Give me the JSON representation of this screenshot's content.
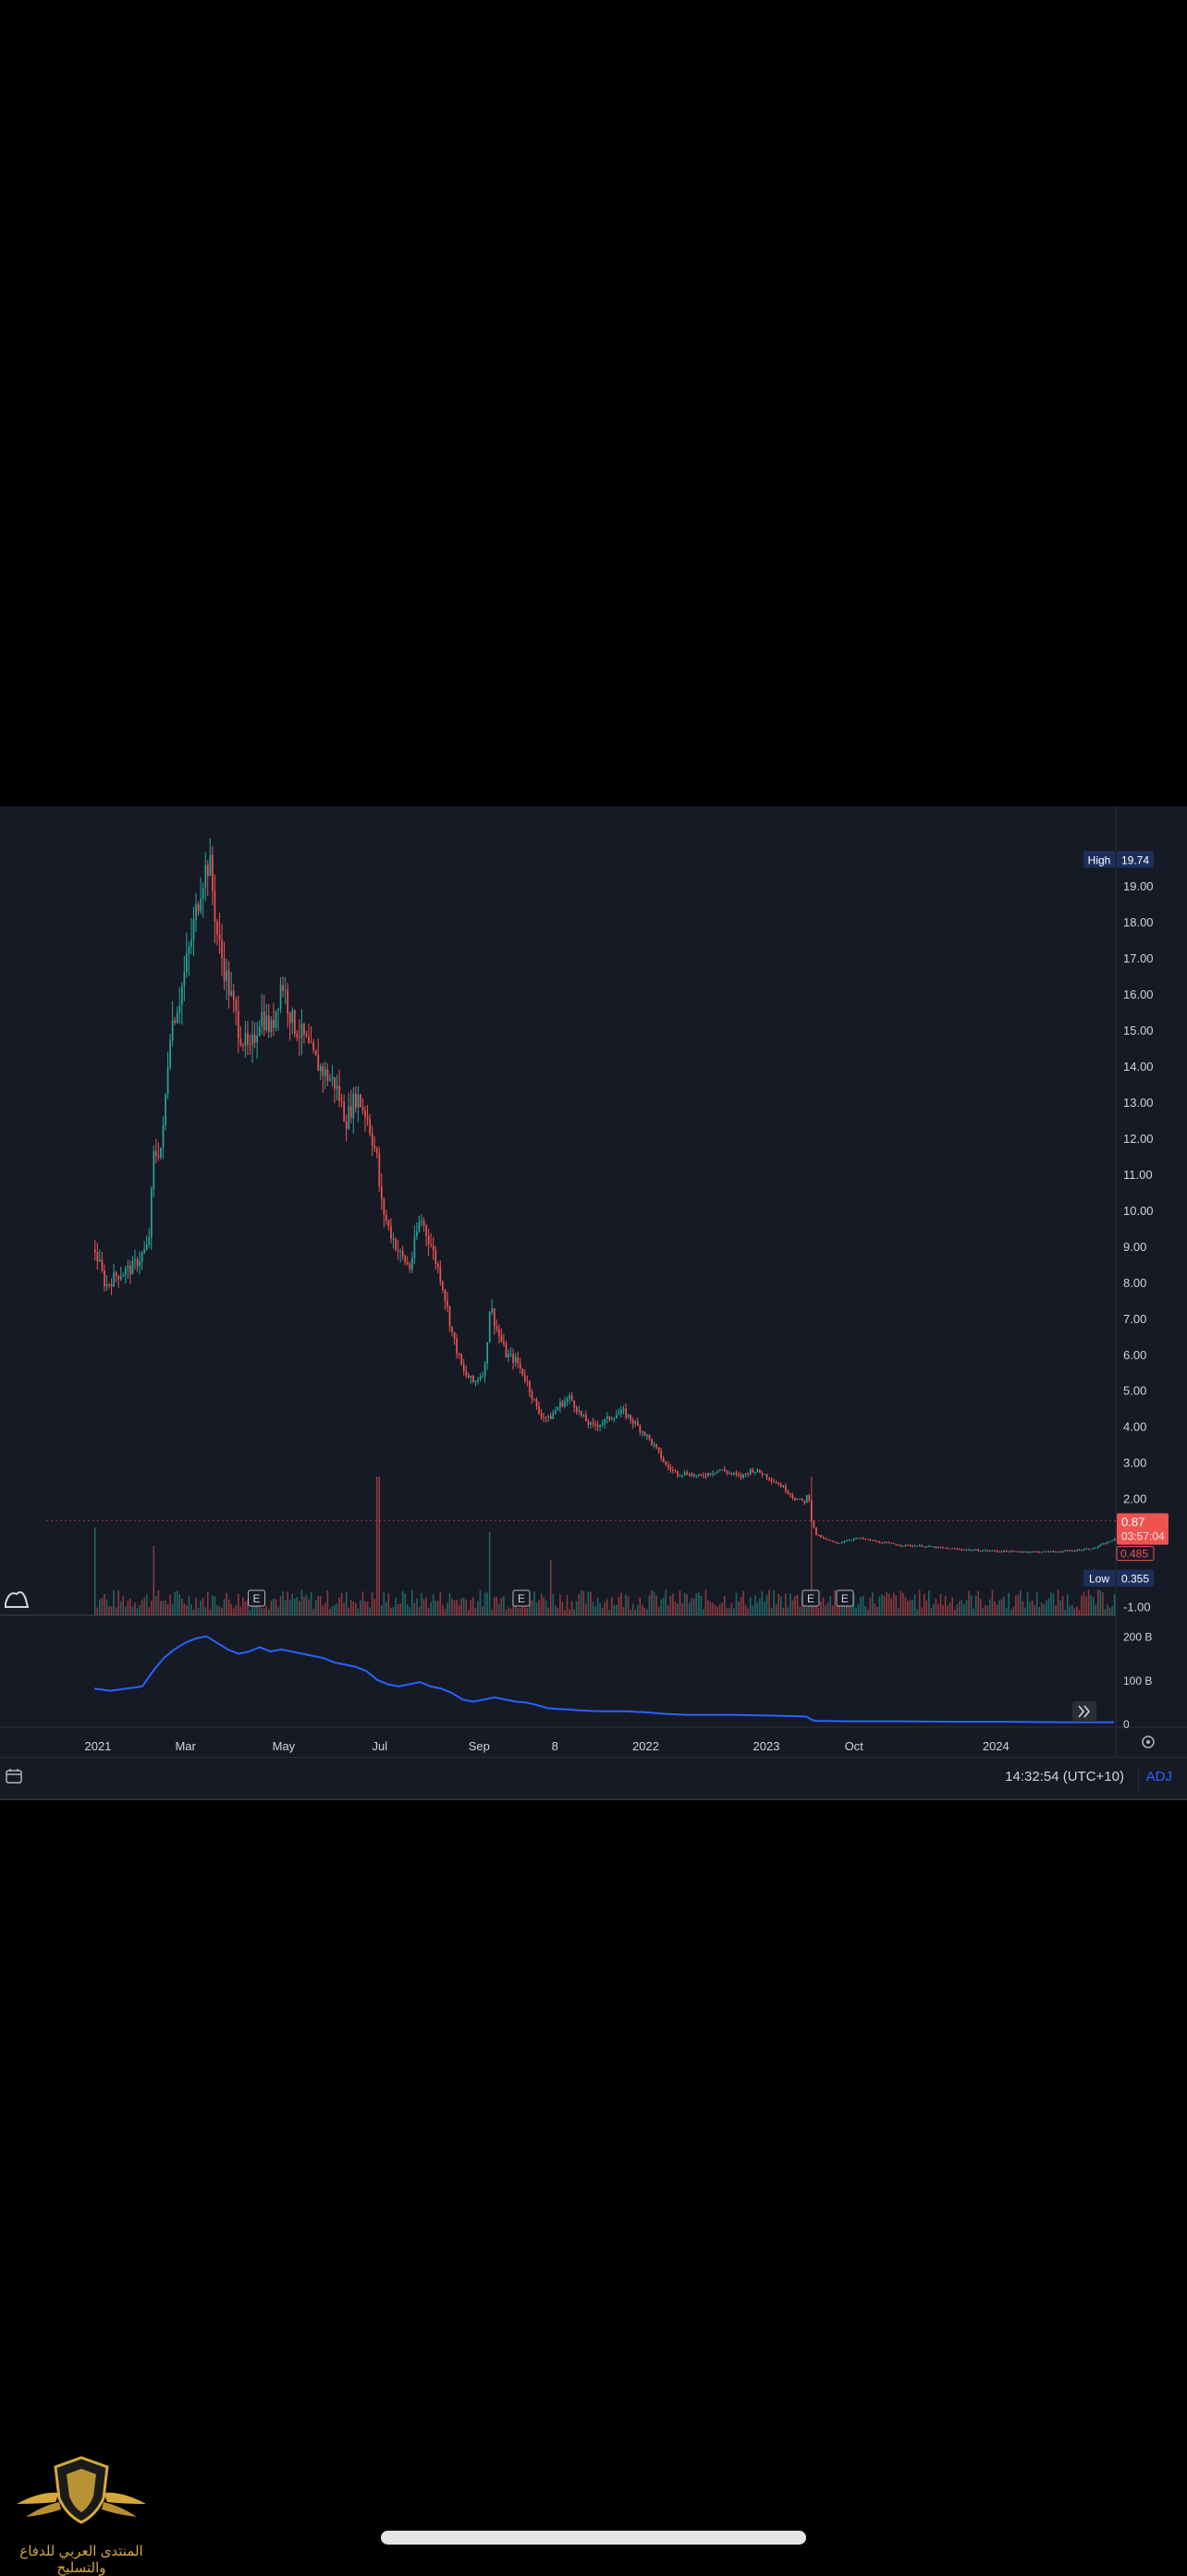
{
  "chart_data": {
    "type": "candlestick",
    "price_axis": {
      "ticks": [
        "19.00",
        "18.00",
        "17.00",
        "16.00",
        "15.00",
        "14.00",
        "13.00",
        "12.00",
        "11.00",
        "10.00",
        "9.00",
        "8.00",
        "7.00",
        "6.00",
        "5.00",
        "4.00",
        "3.00",
        "2.00",
        "-1.00"
      ],
      "tick_values": [
        19,
        18,
        17,
        16,
        15,
        14,
        13,
        12,
        11,
        10,
        9,
        8,
        7,
        6,
        5,
        4,
        3,
        2,
        -1
      ],
      "range": [
        -1.5,
        20.7
      ],
      "high_label": "High",
      "high_value": "19.74",
      "low_label": "Low",
      "low_value": "0.355",
      "last_price": "0.87",
      "countdown": "03:57:04",
      "secondary_price": "0.485"
    },
    "time_axis": {
      "labels": [
        "2021",
        "Mar",
        "May",
        "Jul",
        "Sep",
        "8",
        "2022",
        "2023",
        "Oct",
        "2024"
      ],
      "positions": [
        0.09,
        0.172,
        0.264,
        0.354,
        0.447,
        0.518,
        0.603,
        0.716,
        0.798,
        0.931
      ]
    },
    "price_series": [
      [
        0.045,
        8.9
      ],
      [
        0.055,
        7.9
      ],
      [
        0.065,
        8.2
      ],
      [
        0.08,
        8.4
      ],
      [
        0.095,
        9.0
      ],
      [
        0.1,
        11.5
      ],
      [
        0.108,
        11.8
      ],
      [
        0.115,
        15.0
      ],
      [
        0.125,
        16.0
      ],
      [
        0.135,
        17.5
      ],
      [
        0.145,
        19.2
      ],
      [
        0.152,
        19.7
      ],
      [
        0.16,
        17.5
      ],
      [
        0.17,
        16.2
      ],
      [
        0.18,
        15.0
      ],
      [
        0.19,
        14.3
      ],
      [
        0.2,
        15.5
      ],
      [
        0.21,
        15.0
      ],
      [
        0.22,
        16.4
      ],
      [
        0.23,
        15.2
      ],
      [
        0.24,
        14.8
      ],
      [
        0.25,
        14.2
      ],
      [
        0.26,
        13.8
      ],
      [
        0.27,
        13.5
      ],
      [
        0.28,
        12.5
      ],
      [
        0.29,
        13.2
      ],
      [
        0.3,
        12.6
      ],
      [
        0.31,
        11.3
      ],
      [
        0.312,
        10.3
      ],
      [
        0.32,
        9.5
      ],
      [
        0.33,
        8.8
      ],
      [
        0.34,
        8.4
      ],
      [
        0.345,
        9.2
      ],
      [
        0.35,
        9.8
      ],
      [
        0.36,
        9.0
      ],
      [
        0.37,
        8.0
      ],
      [
        0.38,
        6.5
      ],
      [
        0.39,
        5.5
      ],
      [
        0.4,
        5.2
      ],
      [
        0.41,
        5.6
      ],
      [
        0.415,
        7.4
      ],
      [
        0.42,
        6.8
      ],
      [
        0.43,
        6.0
      ],
      [
        0.44,
        5.8
      ],
      [
        0.45,
        5.2
      ],
      [
        0.46,
        4.4
      ],
      [
        0.47,
        4.2
      ],
      [
        0.48,
        4.6
      ],
      [
        0.49,
        4.8
      ],
      [
        0.5,
        4.3
      ],
      [
        0.51,
        4.0
      ],
      [
        0.52,
        4.1
      ],
      [
        0.53,
        4.3
      ],
      [
        0.54,
        4.4
      ],
      [
        0.55,
        4.1
      ],
      [
        0.56,
        3.8
      ],
      [
        0.57,
        3.4
      ],
      [
        0.58,
        2.9
      ],
      [
        0.59,
        2.7
      ],
      [
        0.6,
        2.7
      ],
      [
        0.61,
        2.6
      ],
      [
        0.62,
        2.7
      ],
      [
        0.63,
        2.8
      ],
      [
        0.64,
        2.7
      ],
      [
        0.65,
        2.6
      ],
      [
        0.66,
        2.8
      ],
      [
        0.67,
        2.7
      ],
      [
        0.68,
        2.5
      ],
      [
        0.69,
        2.3
      ],
      [
        0.7,
        2.0
      ],
      [
        0.71,
        1.9
      ],
      [
        0.713,
        2.2
      ],
      [
        0.716,
        1.4
      ],
      [
        0.72,
        1.0
      ],
      [
        0.73,
        0.85
      ],
      [
        0.74,
        0.75
      ],
      [
        0.75,
        0.85
      ],
      [
        0.76,
        0.9
      ],
      [
        0.77,
        0.85
      ],
      [
        0.78,
        0.78
      ],
      [
        0.79,
        0.75
      ],
      [
        0.8,
        0.7
      ],
      [
        0.82,
        0.68
      ],
      [
        0.84,
        0.62
      ],
      [
        0.86,
        0.58
      ],
      [
        0.88,
        0.55
      ],
      [
        0.9,
        0.53
      ],
      [
        0.92,
        0.52
      ],
      [
        0.94,
        0.52
      ],
      [
        0.96,
        0.55
      ],
      [
        0.98,
        0.62
      ],
      [
        1.0,
        0.87
      ]
    ],
    "earnings_markers": [
      "E",
      "E",
      "E",
      "E"
    ],
    "earnings_positions": [
      0.197,
      0.445,
      0.716,
      0.748
    ],
    "volume_spikes": [
      [
        0.045,
        0.95
      ],
      [
        0.1,
        0.75
      ],
      [
        0.31,
        1.5
      ],
      [
        0.415,
        0.9
      ],
      [
        0.472,
        0.6
      ],
      [
        0.716,
        1.5
      ],
      [
        0.98,
        0.2
      ]
    ],
    "lower_pane": {
      "ticks": [
        "200 B",
        "100 B",
        "0"
      ],
      "tick_values": [
        200,
        100,
        0
      ],
      "range": [
        0,
        210
      ],
      "series": [
        [
          0.045,
          80
        ],
        [
          0.06,
          75
        ],
        [
          0.075,
          80
        ],
        [
          0.09,
          85
        ],
        [
          0.1,
          120
        ],
        [
          0.11,
          150
        ],
        [
          0.12,
          170
        ],
        [
          0.13,
          185
        ],
        [
          0.14,
          195
        ],
        [
          0.15,
          200
        ],
        [
          0.16,
          185
        ],
        [
          0.17,
          170
        ],
        [
          0.18,
          160
        ],
        [
          0.19,
          165
        ],
        [
          0.2,
          175
        ],
        [
          0.21,
          165
        ],
        [
          0.22,
          170
        ],
        [
          0.23,
          165
        ],
        [
          0.24,
          160
        ],
        [
          0.25,
          155
        ],
        [
          0.26,
          150
        ],
        [
          0.27,
          140
        ],
        [
          0.28,
          135
        ],
        [
          0.29,
          130
        ],
        [
          0.3,
          120
        ],
        [
          0.31,
          100
        ],
        [
          0.32,
          90
        ],
        [
          0.33,
          85
        ],
        [
          0.34,
          90
        ],
        [
          0.35,
          95
        ],
        [
          0.36,
          85
        ],
        [
          0.37,
          80
        ],
        [
          0.38,
          70
        ],
        [
          0.39,
          55
        ],
        [
          0.4,
          50
        ],
        [
          0.41,
          55
        ],
        [
          0.42,
          60
        ],
        [
          0.43,
          55
        ],
        [
          0.44,
          50
        ],
        [
          0.45,
          48
        ],
        [
          0.46,
          42
        ],
        [
          0.47,
          35
        ],
        [
          0.48,
          33
        ],
        [
          0.49,
          32
        ],
        [
          0.5,
          30
        ],
        [
          0.52,
          28
        ],
        [
          0.54,
          28
        ],
        [
          0.56,
          26
        ],
        [
          0.58,
          22
        ],
        [
          0.6,
          20
        ],
        [
          0.62,
          20
        ],
        [
          0.64,
          20
        ],
        [
          0.66,
          19
        ],
        [
          0.68,
          18
        ],
        [
          0.7,
          17
        ],
        [
          0.712,
          16
        ],
        [
          0.716,
          10
        ],
        [
          0.72,
          6
        ],
        [
          0.75,
          5
        ],
        [
          0.8,
          5
        ],
        [
          0.85,
          4
        ],
        [
          0.9,
          4
        ],
        [
          0.95,
          3
        ],
        [
          1.0,
          3
        ]
      ]
    },
    "status": {
      "time": "14:32:54 (UTC+10)",
      "adj": "ADJ"
    },
    "colors": {
      "background": "#161a25",
      "up": "#26a69a",
      "down": "#ef5350",
      "line": "#2962ff",
      "axis_text": "#d1d4dc",
      "high_low_bg": "#1c2f5c",
      "last_price_bg": "#ef5350"
    }
  },
  "watermark": {
    "text": "المنتدى العربي للدفاع والتسليح"
  },
  "icons": {
    "scroll": "double-chevron-right-icon",
    "settings": "gear-icon",
    "calendar": "calendar-icon",
    "logo": "tradingview-logo-icon"
  }
}
